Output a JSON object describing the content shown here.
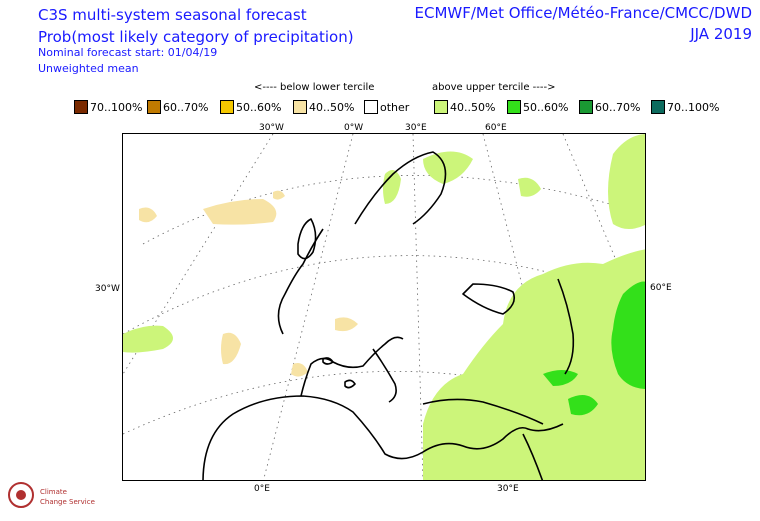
{
  "header": {
    "title": "C3S multi-system seasonal forecast",
    "subtitle": "Prob(most likely category of precipitation)",
    "start": "Nominal forecast start: 01/04/19",
    "mean": "Unweighted mean",
    "centres": "ECMWF/Met Office/Météo-France/CMCC/DWD",
    "season": "JJA 2019"
  },
  "annotations": {
    "below": "<---- below lower tercile",
    "above": "above upper tercile ---->"
  },
  "legend": [
    {
      "label": "70..100%",
      "color": "#7a2a00"
    },
    {
      "label": "60..70%",
      "color": "#c07a00"
    },
    {
      "label": "50..60%",
      "color": "#f5c800"
    },
    {
      "label": "40..50%",
      "color": "#f7e3a5"
    },
    {
      "label": "other",
      "color": "#ffffff"
    },
    {
      "label": "40..50%",
      "color": "#ccf57a"
    },
    {
      "label": "50..60%",
      "color": "#33e01a"
    },
    {
      "label": "60..70%",
      "color": "#1a9933"
    },
    {
      "label": "70..100%",
      "color": "#0d6b5e"
    }
  ],
  "axes": {
    "top": [
      "30°W",
      "0°W",
      "30°E",
      "60°E"
    ],
    "left": "30°W",
    "right": "60°E",
    "bottom": [
      "0°E",
      "30°E"
    ]
  },
  "logo": {
    "line1": "Climate",
    "line2": "Change Service"
  }
}
